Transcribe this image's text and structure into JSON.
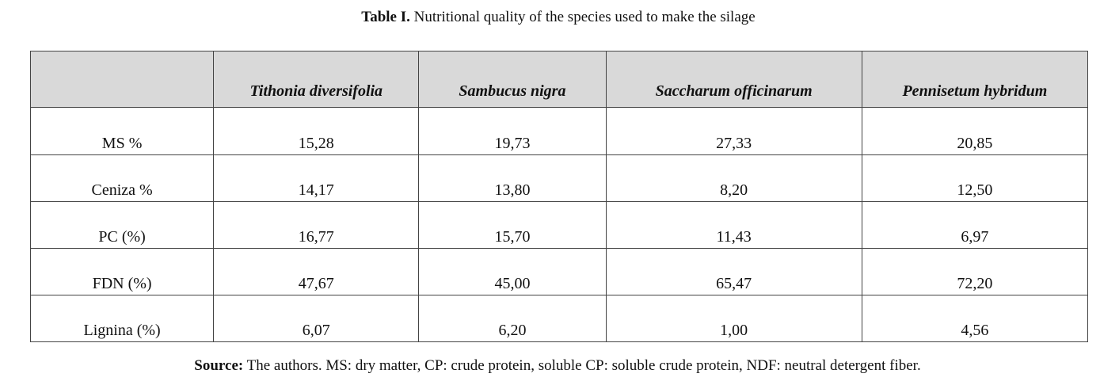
{
  "caption": {
    "lead": "Table I.",
    "text": " Nutritional quality of the species used to make the silage"
  },
  "table": {
    "corner": "",
    "headers": [
      "Tithonia diversifolia",
      "Sambucus nigra",
      "Saccharum officinarum",
      "Pennisetum hybridum"
    ],
    "rows": [
      {
        "label": "MS %",
        "values": [
          "15,28",
          "19,73",
          "27,33",
          "20,85"
        ]
      },
      {
        "label": "Ceniza %",
        "values": [
          "14,17",
          "13,80",
          "8,20",
          "12,50"
        ]
      },
      {
        "label": "PC (%)",
        "values": [
          "16,77",
          "15,70",
          "11,43",
          "6,97"
        ]
      },
      {
        "label": "FDN (%)",
        "values": [
          "47,67",
          "45,00",
          "65,47",
          "72,20"
        ]
      },
      {
        "label": "Lignina (%)",
        "values": [
          "6,07",
          "6,20",
          "1,00",
          "4,56"
        ]
      }
    ]
  },
  "source": {
    "lead": "Source:",
    "text": " The authors. MS: dry matter, CP: crude protein, soluble CP: soluble crude protein, NDF: neutral detergent fiber."
  }
}
